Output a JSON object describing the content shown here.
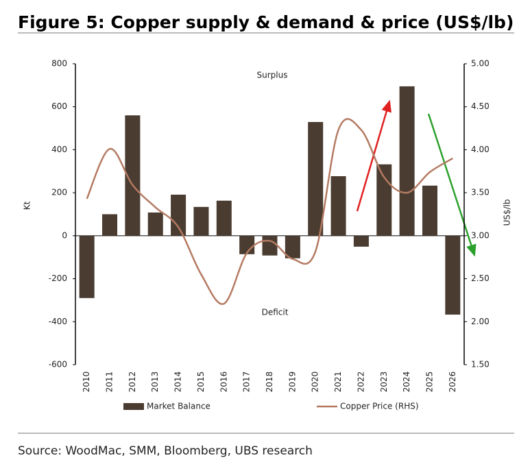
{
  "chart_data": {
    "type": "bar-line",
    "title": "Figure 5: Copper supply & demand & price (US$/lb)",
    "source": "Source: WoodMac, SMM, Bloomberg, UBS research",
    "ylabel": "Kt",
    "y2label": "US$/lb",
    "annotations": [
      "Surplus",
      "Deficit"
    ],
    "categories": [
      "2010",
      "2011",
      "2012",
      "2013",
      "2014",
      "2015",
      "2016",
      "2017",
      "2018",
      "2019",
      "2020",
      "2021",
      "2022",
      "2023",
      "2024",
      "2025",
      "2026"
    ],
    "series": [
      {
        "name": "Market Balance",
        "type": "bar",
        "color": "#4a3c31",
        "values": [
          -290,
          100,
          560,
          108,
          191,
          134,
          163,
          -86,
          -92,
          -105,
          529,
          277,
          -51,
          332,
          695,
          233,
          -367
        ]
      },
      {
        "name": "Copper Price (RHS)",
        "type": "line",
        "axis": "y2",
        "color": "#b47a62",
        "values": [
          3.43,
          4.01,
          3.59,
          3.33,
          3.1,
          2.55,
          2.21,
          2.8,
          2.94,
          2.73,
          2.82,
          4.23,
          4.23,
          3.68,
          3.5,
          3.74,
          3.9
        ]
      }
    ],
    "ylim": [
      -600,
      800
    ],
    "yticks": [
      -600,
      -400,
      -200,
      0,
      200,
      400,
      600,
      800
    ],
    "y2lim": [
      1.5,
      5
    ],
    "y2ticks": [
      {
        "value": 1.5,
        "label": "1.50"
      },
      {
        "value": 2,
        "label": "2.00"
      },
      {
        "value": 2.5,
        "label": "2.50"
      },
      {
        "value": 3,
        "label": "3.00"
      },
      {
        "value": 3.5,
        "label": "3.50"
      },
      {
        "value": 4,
        "label": "4.00"
      },
      {
        "value": 4.5,
        "label": "4.50"
      },
      {
        "value": 5,
        "label": "5.00"
      }
    ]
  }
}
